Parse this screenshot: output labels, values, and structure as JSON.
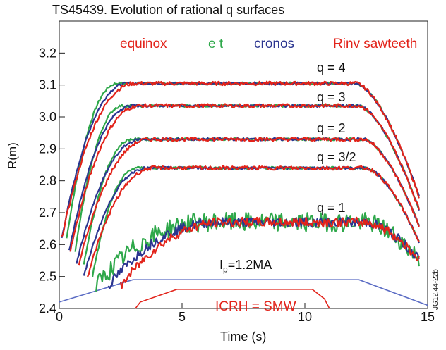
{
  "chart_data": {
    "type": "line",
    "title": "TS45439. Evolution of rational q surfaces",
    "xlabel": "Time (s)",
    "ylabel": "R(m)",
    "xlim": [
      0,
      15
    ],
    "ylim": [
      2.4,
      3.3
    ],
    "xticks": [
      0,
      5,
      10,
      15
    ],
    "yticks": [
      2.4,
      2.5,
      2.6,
      2.7,
      2.8,
      2.9,
      3.0,
      3.1,
      3.2
    ],
    "grid": false,
    "legend_position": "top",
    "series": [
      {
        "name": "equinox",
        "color": "#e2231a"
      },
      {
        "name": "e t",
        "color": "#2ea84a"
      },
      {
        "name": "cronos",
        "color": "#2b3590"
      },
      {
        "name": "Rinv sawteeth",
        "color": "#e2231a"
      }
    ],
    "surfaces": [
      {
        "label": "q = 4",
        "plateau": 3.105,
        "t_rise": 2.8,
        "t_fall": 12.1,
        "start": 2.62,
        "end": 2.74
      },
      {
        "label": "q = 3",
        "plateau": 3.035,
        "t_rise": 3.0,
        "t_fall": 12.2,
        "start": 2.58,
        "end": 2.7
      },
      {
        "label": "q = 2",
        "plateau": 2.93,
        "t_rise": 3.4,
        "t_fall": 12.4,
        "start": 2.54,
        "end": 2.65
      },
      {
        "label": "q = 3/2",
        "plateau": 2.84,
        "t_rise": 3.6,
        "t_fall": 12.5,
        "start": 2.5,
        "end": 2.6
      },
      {
        "label": "q = 1",
        "plateau": 2.67,
        "t_rise": 6.5,
        "t_fall": 12.5,
        "start": 2.47,
        "end": 2.55
      }
    ],
    "current_trace": {
      "label": "I_p=1.2MA",
      "points": [
        [
          0,
          2.42
        ],
        [
          3,
          2.49
        ],
        [
          12.2,
          2.49
        ],
        [
          15,
          2.41
        ]
      ]
    },
    "icrh_trace": {
      "label": "ICRH = SMW",
      "points": [
        [
          3.1,
          2.4
        ],
        [
          3.3,
          2.42
        ],
        [
          4.8,
          2.46
        ],
        [
          10.3,
          2.46
        ],
        [
          10.8,
          2.43
        ],
        [
          11,
          2.4
        ]
      ]
    },
    "annotations": {
      "ip_prefix": "I",
      "ip_sub": "p",
      "ip_suffix": "=1.2MA",
      "icrh": "ICRH = SMW",
      "code": "JG12.44-22b"
    }
  }
}
